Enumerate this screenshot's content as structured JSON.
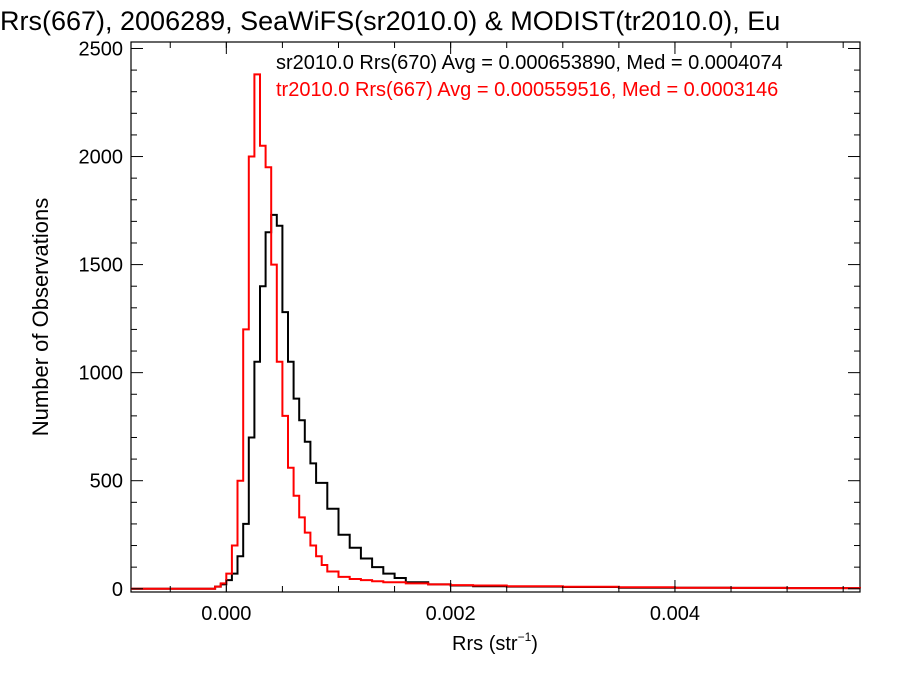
{
  "chart_data": {
    "type": "line",
    "title": "Rrs(667), 2006289, SeaWiFS(sr2010.0) & MODIST(tr2010.0), Eu",
    "xlabel": "Rrs (str",
    "xlabel_sup": "−1",
    "xlabel_close": ")",
    "ylabel": "Number of Observations",
    "xlim": [
      -0.00085,
      0.00565
    ],
    "ylim": [
      -15,
      2530
    ],
    "x_ticks": [
      0.0,
      0.002,
      0.004
    ],
    "x_tick_labels": [
      "0.000",
      "0.002",
      "0.004"
    ],
    "y_ticks": [
      0,
      500,
      1000,
      1500,
      2000,
      2500
    ],
    "y_tick_labels": [
      "0",
      "500",
      "1000",
      "1500",
      "2000",
      "2500"
    ],
    "grid": false,
    "legend_position": "top",
    "series": [
      {
        "name": "sr2010.0 Rrs(670) Avg = 0.000653890, Med = 0.0004074",
        "color": "#000000",
        "points": [
          [
            -0.00085,
            0
          ],
          [
            -0.0002,
            0
          ],
          [
            -0.0001,
            10
          ],
          [
            -5e-05,
            20
          ],
          [
            0.0,
            40
          ],
          [
            5e-05,
            70
          ],
          [
            0.0001,
            150
          ],
          [
            0.00015,
            300
          ],
          [
            0.0002,
            700
          ],
          [
            0.00025,
            1050
          ],
          [
            0.0003,
            1400
          ],
          [
            0.00035,
            1650
          ],
          [
            0.0004,
            1730
          ],
          [
            0.00045,
            1680
          ],
          [
            0.0005,
            1280
          ],
          [
            0.00055,
            1050
          ],
          [
            0.0006,
            880
          ],
          [
            0.00065,
            780
          ],
          [
            0.0007,
            680
          ],
          [
            0.00075,
            580
          ],
          [
            0.0008,
            490
          ],
          [
            0.0009,
            370
          ],
          [
            0.001,
            250
          ],
          [
            0.0011,
            190
          ],
          [
            0.0012,
            140
          ],
          [
            0.0013,
            100
          ],
          [
            0.0014,
            70
          ],
          [
            0.0015,
            50
          ],
          [
            0.0016,
            30
          ],
          [
            0.0018,
            20
          ],
          [
            0.002,
            15
          ],
          [
            0.0022,
            12
          ],
          [
            0.0025,
            10
          ],
          [
            0.003,
            8
          ],
          [
            0.0035,
            5
          ],
          [
            0.004,
            5
          ],
          [
            0.0045,
            4
          ],
          [
            0.005,
            3
          ],
          [
            0.00565,
            2
          ]
        ]
      },
      {
        "name": "tr2010.0 Rrs(667) Avg = 0.000559516, Med = 0.0003146",
        "color": "#ff0000",
        "points": [
          [
            -0.00085,
            0
          ],
          [
            -0.0002,
            0
          ],
          [
            -0.0001,
            10
          ],
          [
            -5e-05,
            25
          ],
          [
            0.0,
            70
          ],
          [
            5e-05,
            200
          ],
          [
            0.0001,
            500
          ],
          [
            0.00015,
            1200
          ],
          [
            0.0002,
            2000
          ],
          [
            0.00025,
            2380
          ],
          [
            0.0003,
            2050
          ],
          [
            0.00035,
            1950
          ],
          [
            0.0004,
            1500
          ],
          [
            0.00045,
            1050
          ],
          [
            0.0005,
            800
          ],
          [
            0.00055,
            560
          ],
          [
            0.0006,
            430
          ],
          [
            0.00065,
            330
          ],
          [
            0.0007,
            260
          ],
          [
            0.00075,
            200
          ],
          [
            0.0008,
            150
          ],
          [
            0.00085,
            110
          ],
          [
            0.0009,
            80
          ],
          [
            0.001,
            55
          ],
          [
            0.0011,
            45
          ],
          [
            0.0012,
            40
          ],
          [
            0.0013,
            35
          ],
          [
            0.0014,
            30
          ],
          [
            0.0016,
            25
          ],
          [
            0.0018,
            20
          ],
          [
            0.002,
            17
          ],
          [
            0.0022,
            15
          ],
          [
            0.0025,
            12
          ],
          [
            0.003,
            9
          ],
          [
            0.0035,
            7
          ],
          [
            0.004,
            5
          ],
          [
            0.0045,
            4
          ],
          [
            0.005,
            3
          ],
          [
            0.00565,
            2
          ]
        ]
      }
    ]
  }
}
